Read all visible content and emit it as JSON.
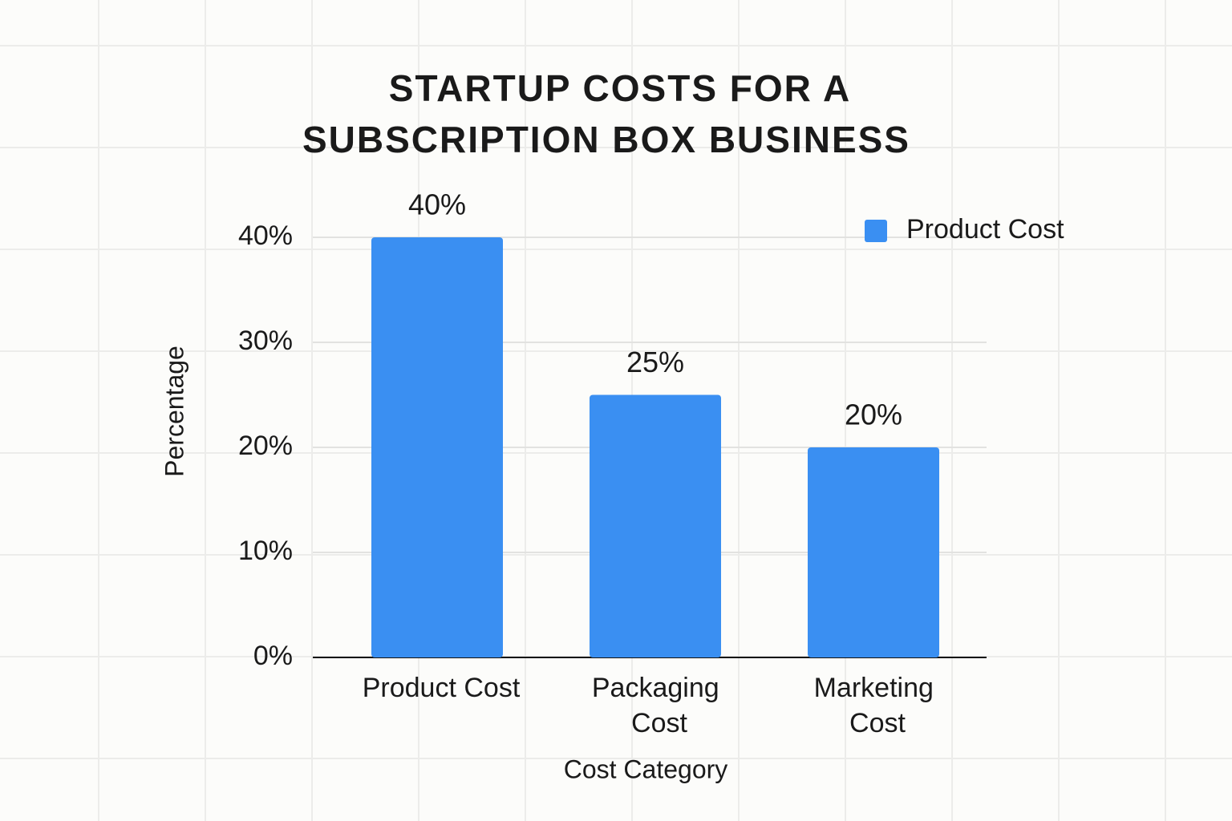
{
  "chart_data": {
    "type": "bar",
    "title": [
      "STARTUP COSTS FOR A",
      "SUBSCRIPTION BOX BUSINESS"
    ],
    "categories": [
      "Product Cost",
      "Packaging Cost",
      "Marketing Cost"
    ],
    "series": [
      {
        "name": "Product Cost",
        "color": "#3a8ff2",
        "values": [
          40,
          25,
          20
        ],
        "value_labels": [
          "40%",
          "25%",
          "20%"
        ]
      }
    ],
    "ylim": [
      0,
      40
    ],
    "yticks": [
      {
        "value": 0,
        "label": "0%"
      },
      {
        "value": 10,
        "label": "10%"
      },
      {
        "value": 20,
        "label": "20%"
      },
      {
        "value": 30,
        "label": "30%"
      },
      {
        "value": 40,
        "label": "40%"
      }
    ],
    "xlabel": "Cost Category",
    "ylabel": "Percentage",
    "grid": true,
    "legend": "upper right"
  }
}
